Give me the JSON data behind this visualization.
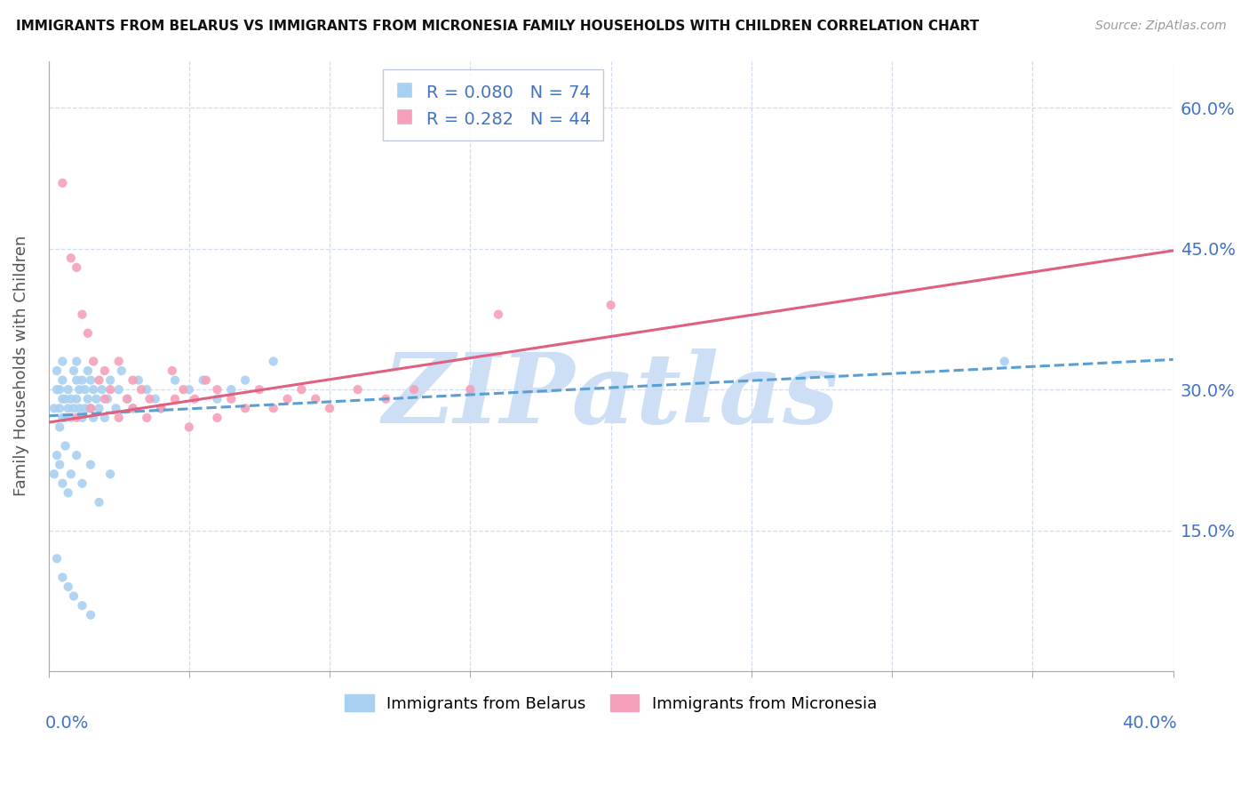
{
  "title": "IMMIGRANTS FROM BELARUS VS IMMIGRANTS FROM MICRONESIA FAMILY HOUSEHOLDS WITH CHILDREN CORRELATION CHART",
  "source": "Source: ZipAtlas.com",
  "ylabel": "Family Households with Children",
  "xlim": [
    0.0,
    0.4
  ],
  "ylim": [
    0.0,
    0.65
  ],
  "yticks": [
    0.0,
    0.15,
    0.3,
    0.45,
    0.6
  ],
  "ytick_labels_right": [
    "15.0%",
    "30.0%",
    "45.0%",
    "60.0%"
  ],
  "ytick_right_vals": [
    0.15,
    0.3,
    0.45,
    0.6
  ],
  "color_belarus": "#a8d0f0",
  "color_micronesia": "#f5a0b8",
  "color_trendline_belarus": "#5a9fd4",
  "color_trendline_micronesia": "#e06080",
  "color_blue_label": "#4472c4",
  "r_belarus": "0.080",
  "n_belarus": "74",
  "r_micronesia": "0.282",
  "n_micronesia": "44",
  "watermark_text": "ZIPatlas",
  "watermark_color": "#ccdff5",
  "bel_trend_x0": 0.0,
  "bel_trend_y0": 0.272,
  "bel_trend_x1": 0.4,
  "bel_trend_y1": 0.332,
  "mic_trend_x0": 0.0,
  "mic_trend_y0": 0.265,
  "mic_trend_x1": 0.4,
  "mic_trend_y1": 0.448,
  "bel_x": [
    0.002,
    0.003,
    0.003,
    0.004,
    0.004,
    0.004,
    0.005,
    0.005,
    0.005,
    0.005,
    0.006,
    0.006,
    0.007,
    0.007,
    0.008,
    0.008,
    0.009,
    0.009,
    0.01,
    0.01,
    0.01,
    0.011,
    0.011,
    0.012,
    0.012,
    0.013,
    0.013,
    0.014,
    0.014,
    0.015,
    0.015,
    0.016,
    0.016,
    0.017,
    0.018,
    0.019,
    0.02,
    0.021,
    0.022,
    0.024,
    0.025,
    0.026,
    0.028,
    0.03,
    0.032,
    0.035,
    0.038,
    0.04,
    0.045,
    0.05,
    0.055,
    0.06,
    0.065,
    0.07,
    0.08,
    0.34,
    0.002,
    0.003,
    0.004,
    0.005,
    0.006,
    0.007,
    0.008,
    0.01,
    0.012,
    0.015,
    0.018,
    0.022,
    0.003,
    0.005,
    0.007,
    0.009,
    0.012,
    0.015
  ],
  "bel_y": [
    0.28,
    0.3,
    0.32,
    0.26,
    0.28,
    0.3,
    0.27,
    0.29,
    0.31,
    0.33,
    0.27,
    0.29,
    0.28,
    0.3,
    0.27,
    0.29,
    0.28,
    0.32,
    0.29,
    0.31,
    0.33,
    0.28,
    0.3,
    0.27,
    0.31,
    0.28,
    0.3,
    0.29,
    0.32,
    0.28,
    0.31,
    0.27,
    0.3,
    0.29,
    0.28,
    0.3,
    0.27,
    0.29,
    0.31,
    0.28,
    0.3,
    0.32,
    0.29,
    0.28,
    0.31,
    0.3,
    0.29,
    0.28,
    0.31,
    0.3,
    0.31,
    0.29,
    0.3,
    0.31,
    0.33,
    0.33,
    0.21,
    0.23,
    0.22,
    0.2,
    0.24,
    0.19,
    0.21,
    0.23,
    0.2,
    0.22,
    0.18,
    0.21,
    0.12,
    0.1,
    0.09,
    0.08,
    0.07,
    0.06
  ],
  "mic_x": [
    0.005,
    0.008,
    0.01,
    0.012,
    0.014,
    0.016,
    0.018,
    0.02,
    0.022,
    0.025,
    0.028,
    0.03,
    0.033,
    0.036,
    0.04,
    0.044,
    0.048,
    0.052,
    0.056,
    0.06,
    0.065,
    0.07,
    0.075,
    0.08,
    0.085,
    0.09,
    0.095,
    0.1,
    0.11,
    0.12,
    0.13,
    0.15,
    0.16,
    0.2,
    0.01,
    0.015,
    0.02,
    0.025,
    0.03,
    0.035,
    0.04,
    0.045,
    0.05,
    0.06
  ],
  "mic_y": [
    0.52,
    0.44,
    0.43,
    0.38,
    0.36,
    0.33,
    0.31,
    0.32,
    0.3,
    0.33,
    0.29,
    0.31,
    0.3,
    0.29,
    0.28,
    0.32,
    0.3,
    0.29,
    0.31,
    0.3,
    0.29,
    0.28,
    0.3,
    0.28,
    0.29,
    0.3,
    0.29,
    0.28,
    0.3,
    0.29,
    0.3,
    0.3,
    0.38,
    0.39,
    0.27,
    0.28,
    0.29,
    0.27,
    0.28,
    0.27,
    0.28,
    0.29,
    0.26,
    0.27
  ]
}
